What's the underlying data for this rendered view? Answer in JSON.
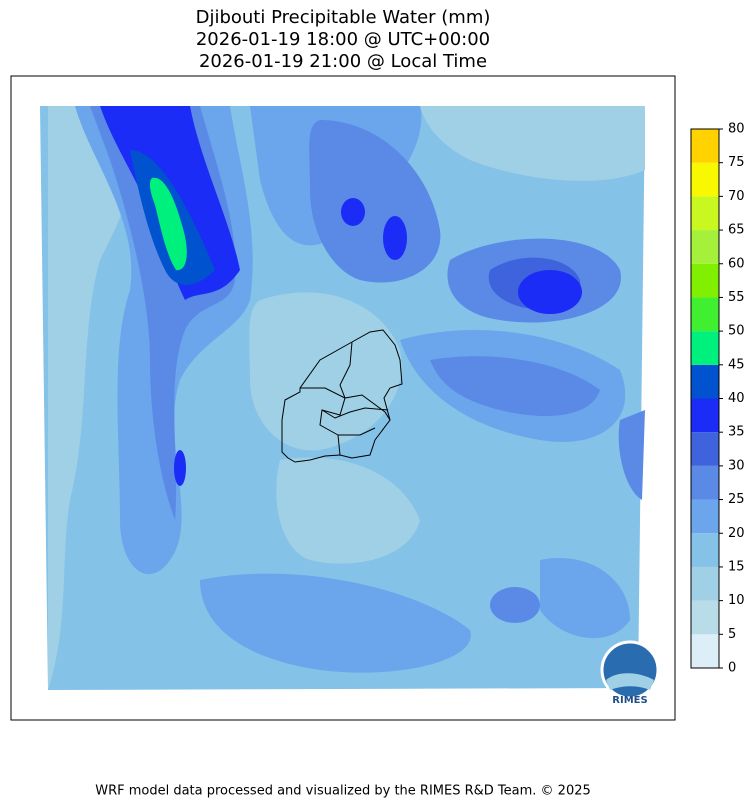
{
  "title": [
    "Djibouti Precipitable Water (mm)",
    "2026-01-19 18:00 @ UTC+00:00",
    "2026-01-19 21:00 @ Local Time"
  ],
  "colorbar": {
    "ticks": [
      0,
      5,
      10,
      15,
      20,
      25,
      30,
      35,
      40,
      45,
      50,
      55,
      60,
      65,
      70,
      75,
      80
    ],
    "colors": [
      "#dceef8",
      "#b8dde8",
      "#9fd0e6",
      "#84c2e8",
      "#6ba5ec",
      "#5a8ae6",
      "#3f63dc",
      "#1a2cf5",
      "#0052cf",
      "#00f07e",
      "#40f030",
      "#80f000",
      "#a4f03a",
      "#c8f820",
      "#f8f800",
      "#ffd200"
    ]
  },
  "logo_text": "RIMES",
  "footer": "WRF model data processed and visualized by the RIMES R&D Team. © 2025"
}
